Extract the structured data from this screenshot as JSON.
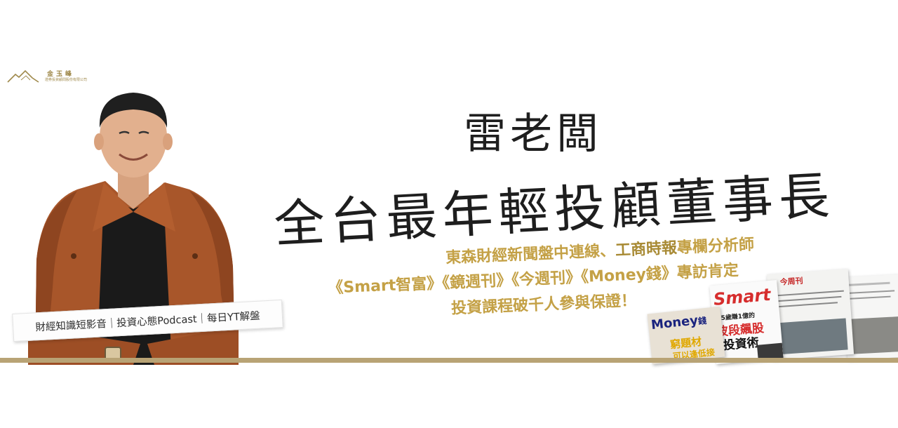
{
  "logo": {
    "name": "金玉峰",
    "subtitle": "證券投資顧問股份有限公司"
  },
  "headline": {
    "name": "雷老闆",
    "title": "全台最年輕投顧董事長"
  },
  "subheadline": {
    "line1": {
      "part1": "東森財經新聞盤中連線、",
      "part2": "工商時報",
      "part3": "專欄分析師"
    },
    "line2": "《Smart智富》《鏡週刊》《今週刊》《Money錢》專訪肯定",
    "line3": "投資課程破千人參與保證！"
  },
  "caption": {
    "text": "財經知識短影音｜投資心態Podcast｜每日YT解盤"
  },
  "magazines": {
    "money": {
      "brand": "Money",
      "brand_suffix": "錢",
      "headline": "窮題材",
      "sub": "可以逢低接"
    },
    "smart": {
      "brand": "Smart",
      "tagline": "35歲賺1億的",
      "headline": "波段飆股",
      "headline2": "投資術"
    },
    "jinzhou": {
      "brand": "今周刊"
    }
  },
  "colors": {
    "gold": "#c4a146",
    "dark_gold": "#a88a34",
    "base_line": "#b8a375",
    "text": "#1e1e1e"
  }
}
